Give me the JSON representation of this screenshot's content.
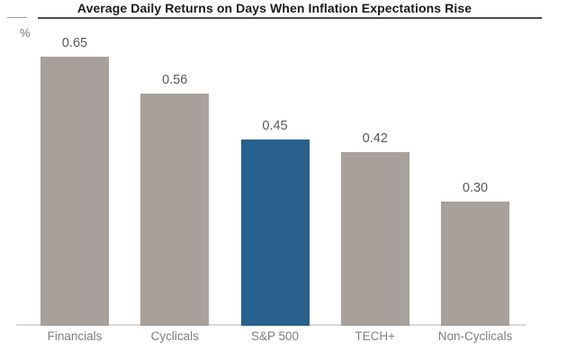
{
  "title": "Average Daily Returns on Days When Inflation Expectations Rise",
  "y_axis_unit": "%",
  "chart_data": {
    "type": "bar",
    "title": "Average Daily Returns on Days When Inflation Expectations Rise",
    "categories": [
      "Financials",
      "Cyclicals",
      "S&P 500",
      "TECH+",
      "Non-Cyclicals"
    ],
    "values": [
      0.65,
      0.56,
      0.45,
      0.42,
      0.3
    ],
    "value_labels": [
      "0.65",
      "0.56",
      "0.45",
      "0.42",
      "0.30"
    ],
    "xlabel": "",
    "ylabel": "%",
    "ylim": [
      0,
      0.78
    ],
    "grid": false,
    "legend_position": "none",
    "highlight_category": "S&P 500",
    "highlight_index": 2
  },
  "colors": {
    "bar_default": "#a8a09a",
    "bar_highlight": "#28618e",
    "title_text": "#1a1a1a",
    "title_rule": "#4d4d4d",
    "value_label": "#595959",
    "category_label": "#7f7f7f",
    "axis_line": "#dad8d6"
  }
}
